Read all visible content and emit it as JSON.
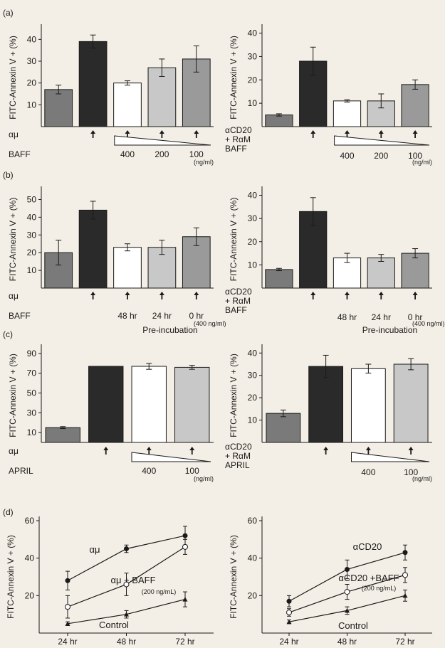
{
  "colors": {
    "background": "#f3efe6",
    "ink": "#1a1a1a",
    "bar_medium": "#7a7a7a",
    "bar_dark": "#2a2a2a",
    "bar_white": "#ffffff",
    "bar_light": "#c8c8c8"
  },
  "chart_data": [
    {
      "type": "bar",
      "panel_label": "(a)",
      "ylabel": "FITC-Annexin V + (%)",
      "ylim": [
        0,
        45
      ],
      "yticks": [
        10,
        20,
        30,
        40
      ],
      "values": [
        17,
        39,
        20,
        27,
        31
      ],
      "errors": [
        2,
        3,
        1,
        4,
        6
      ],
      "fills": [
        "#7a7a7a",
        "#2a2a2a",
        "#ffffff",
        "#c8c8c8",
        "#9a9a9a"
      ],
      "row_labels": [
        "αμ",
        "BAFF"
      ],
      "arrows": [
        false,
        true,
        true,
        true,
        true
      ],
      "wedge": {
        "from": 2,
        "to": 4
      },
      "dose_labels": [
        "",
        "",
        "400",
        "200",
        "100"
      ],
      "unit_label": "(ng/ml)",
      "caption": ""
    },
    {
      "type": "bar",
      "panel_label": "",
      "ylabel": "FITC-Annexin V + (%)",
      "ylim": [
        0,
        42
      ],
      "yticks": [
        10,
        20,
        30,
        40
      ],
      "values": [
        5,
        28,
        11,
        11,
        18
      ],
      "errors": [
        0.5,
        6,
        0.5,
        3,
        2
      ],
      "fills": [
        "#7a7a7a",
        "#2a2a2a",
        "#ffffff",
        "#c8c8c8",
        "#9a9a9a"
      ],
      "row_labels": [
        "αCD20",
        "+ RαM",
        "BAFF"
      ],
      "arrows": [
        false,
        true,
        true,
        true,
        true
      ],
      "wedge": {
        "from": 2,
        "to": 4
      },
      "dose_labels": [
        "",
        "",
        "400",
        "200",
        "100"
      ],
      "unit_label": "(ng/ml)",
      "caption": ""
    },
    {
      "type": "bar",
      "panel_label": "(b)",
      "ylabel": "FITC-Annexin V + (%)",
      "ylim": [
        0,
        55
      ],
      "yticks": [
        10,
        20,
        30,
        40,
        50
      ],
      "values": [
        20,
        44,
        23,
        23,
        29
      ],
      "errors": [
        7,
        5,
        2,
        4,
        5
      ],
      "fills": [
        "#7a7a7a",
        "#2a2a2a",
        "#ffffff",
        "#c8c8c8",
        "#9a9a9a"
      ],
      "row_labels": [
        "αμ",
        "BAFF"
      ],
      "arrows": [
        false,
        true,
        true,
        true,
        true
      ],
      "wedge": null,
      "dose_labels": [
        "",
        "",
        "48 hr",
        "24 hr",
        "0 hr"
      ],
      "unit_label": "(400 ng/ml)",
      "caption": "Pre-incubation"
    },
    {
      "type": "bar",
      "panel_label": "",
      "ylabel": "FITC-Annexin V + (%)",
      "ylim": [
        0,
        42
      ],
      "yticks": [
        10,
        20,
        30,
        40
      ],
      "values": [
        8,
        33,
        13,
        13,
        15
      ],
      "errors": [
        0.5,
        6,
        2,
        1.5,
        2
      ],
      "fills": [
        "#7a7a7a",
        "#2a2a2a",
        "#ffffff",
        "#c8c8c8",
        "#9a9a9a"
      ],
      "row_labels": [
        "αCD20",
        "+ RαM",
        "BAFF"
      ],
      "arrows": [
        false,
        true,
        true,
        true,
        true
      ],
      "wedge": null,
      "dose_labels": [
        "",
        "",
        "48 hr",
        "24 hr",
        "0 hr"
      ],
      "unit_label": "(400 ng/ml)",
      "caption": "Pre-incubation"
    },
    {
      "type": "bar",
      "panel_label": "(c)",
      "ylabel": "FITC-Annexin V + (%)",
      "ylim": [
        0,
        95
      ],
      "yticks": [
        10,
        30,
        50,
        70,
        90
      ],
      "values": [
        15,
        77,
        77,
        76
      ],
      "errors": [
        1,
        0,
        3,
        2
      ],
      "fills": [
        "#7a7a7a",
        "#2a2a2a",
        "#ffffff",
        "#c8c8c8"
      ],
      "row_labels": [
        "αμ",
        "APRIL"
      ],
      "arrows": [
        false,
        true,
        true,
        true
      ],
      "wedge": {
        "from": 2,
        "to": 3
      },
      "dose_labels": [
        "",
        "",
        "400",
        "100"
      ],
      "unit_label": "(ng/ml)",
      "caption": ""
    },
    {
      "type": "bar",
      "panel_label": "",
      "ylabel": "FITC-Annexin V + (%)",
      "ylim": [
        0,
        42
      ],
      "yticks": [
        10,
        20,
        30,
        40
      ],
      "values": [
        13,
        34,
        33,
        35
      ],
      "errors": [
        1.5,
        5,
        2,
        2.5
      ],
      "fills": [
        "#7a7a7a",
        "#2a2a2a",
        "#ffffff",
        "#c8c8c8"
      ],
      "row_labels": [
        "αCD20",
        "+ RαM",
        "APRIL"
      ],
      "arrows": [
        false,
        true,
        true,
        true
      ],
      "wedge": {
        "from": 2,
        "to": 3
      },
      "dose_labels": [
        "",
        "",
        "400",
        "100"
      ],
      "unit_label": "(ng/ml)",
      "caption": ""
    },
    {
      "type": "line",
      "panel_label": "(d)",
      "ylabel": "FITC-Annexin V + (%)",
      "ylim": [
        0,
        60
      ],
      "yticks": [
        20,
        40,
        60
      ],
      "categories": [
        "24 hr",
        "48 hr",
        "72 hr"
      ],
      "series": [
        {
          "name": "αμ",
          "values": [
            28,
            45,
            52
          ],
          "errors": [
            5,
            2,
            5
          ],
          "marker": "filled-circle"
        },
        {
          "name": "αμ + BAFF",
          "values": [
            14,
            26,
            46
          ],
          "errors": [
            6,
            6,
            4
          ],
          "marker": "open-circle"
        },
        {
          "name": "Control",
          "values": [
            5,
            10,
            18
          ],
          "errors": [
            1,
            2,
            4
          ],
          "marker": "filled-triangle"
        }
      ],
      "annotation": "(200 ng/mL)"
    },
    {
      "type": "line",
      "panel_label": "",
      "ylabel": "FITC-Annexin V + (%)",
      "ylim": [
        0,
        60
      ],
      "yticks": [
        20,
        40,
        60
      ],
      "categories": [
        "24 hr",
        "48 hr",
        "72 hr"
      ],
      "series": [
        {
          "name": "αCD20",
          "values": [
            17,
            34,
            43
          ],
          "errors": [
            3,
            5,
            4
          ],
          "marker": "filled-circle"
        },
        {
          "name": "αCD20 +BAFF",
          "values": [
            11,
            22,
            31
          ],
          "errors": [
            2,
            4,
            4
          ],
          "marker": "open-circle"
        },
        {
          "name": "Control",
          "values": [
            6,
            12,
            20
          ],
          "errors": [
            1,
            2,
            3
          ],
          "marker": "filled-triangle"
        }
      ],
      "annotation": "(200 ng/mL)"
    }
  ]
}
